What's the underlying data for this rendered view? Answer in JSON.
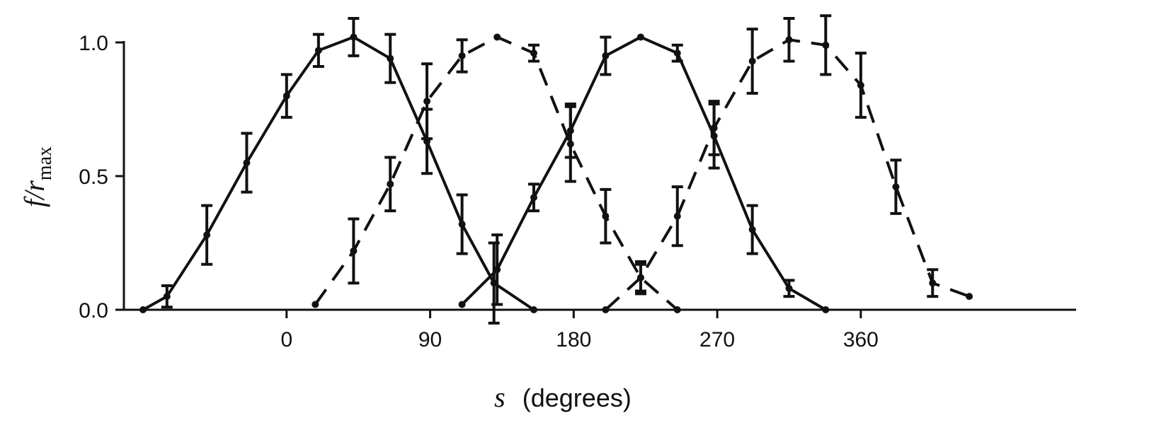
{
  "chart_data": {
    "type": "line",
    "xlabel_var": "s",
    "xlabel_unit": "(degrees)",
    "ylabel_num": "f",
    "ylabel_den": "r",
    "ylabel_sub": "max",
    "xlim": [
      -102,
      495
    ],
    "ylim": [
      0,
      1.0
    ],
    "x_ticks": [
      0,
      90,
      180,
      270,
      360
    ],
    "y_ticks": [
      0.0,
      0.5,
      1.0
    ],
    "y_tick_labels": [
      "0.0",
      "0.5",
      "1.0"
    ],
    "grid": false,
    "series": [
      {
        "style": "solid",
        "x": [
          -90,
          -75,
          -50,
          -25,
          0,
          20,
          42,
          65,
          88,
          110,
          130,
          155
        ],
        "y": [
          0.0,
          0.05,
          0.28,
          0.55,
          0.8,
          0.97,
          1.02,
          0.94,
          0.63,
          0.32,
          0.1,
          0.0
        ],
        "err": [
          0,
          0.04,
          0.11,
          0.11,
          0.08,
          0.06,
          0.07,
          0.09,
          0.12,
          0.11,
          0.15,
          0
        ]
      },
      {
        "style": "dashed",
        "x": [
          18,
          42,
          65,
          88,
          110,
          132,
          155,
          178,
          200,
          222,
          245
        ],
        "y": [
          0.02,
          0.22,
          0.47,
          0.78,
          0.95,
          1.02,
          0.96,
          0.62,
          0.35,
          0.12,
          0.0
        ],
        "err": [
          0,
          0.12,
          0.1,
          0.14,
          0.06,
          0,
          0.03,
          0.14,
          0.1,
          0.06,
          0
        ]
      },
      {
        "style": "solid",
        "x": [
          110,
          132,
          155,
          178,
          200,
          222,
          245,
          268,
          292,
          315,
          338
        ],
        "y": [
          0.02,
          0.15,
          0.42,
          0.67,
          0.95,
          1.02,
          0.96,
          0.65,
          0.3,
          0.08,
          0.0
        ],
        "err": [
          0,
          0.13,
          0.05,
          0.1,
          0.07,
          0,
          0.03,
          0.12,
          0.09,
          0.03,
          0
        ]
      },
      {
        "style": "dashed",
        "x": [
          200,
          222,
          245,
          268,
          292,
          315,
          338,
          360,
          382,
          405,
          428
        ],
        "y": [
          0.0,
          0.12,
          0.35,
          0.68,
          0.93,
          1.01,
          0.99,
          0.84,
          0.46,
          0.1,
          0.05
        ],
        "err": [
          0,
          0.05,
          0.11,
          0.1,
          0.12,
          0.08,
          0.11,
          0.12,
          0.1,
          0.05,
          0
        ]
      }
    ]
  }
}
